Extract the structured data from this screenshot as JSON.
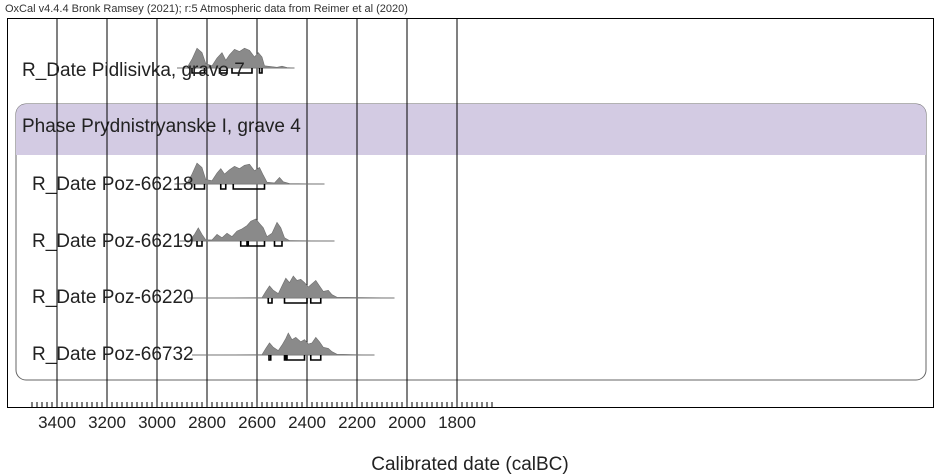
{
  "header": "OxCal v4.4.4 Bronk Ramsey (2021); r:5 Atmospheric data from Reimer et al (2020)",
  "colors": {
    "phase_band": "#d3cbe3",
    "distribution": "#8a8a8a",
    "grid": "#000000",
    "whisker": "#000000"
  },
  "chart_data": {
    "type": "oxcal-multiplot",
    "xlabel": "Calibrated date (calBC)",
    "xlim": [
      3500,
      1650
    ],
    "x_reversed": true,
    "ticks": [
      3400,
      3200,
      3000,
      2800,
      2600,
      2400,
      2200,
      2000,
      1800
    ],
    "tick_labels": [
      "3400",
      "3200",
      "3000",
      "2800",
      "2600",
      "2400",
      "2200",
      "2000",
      "1800"
    ],
    "minor_tick_step": 20,
    "phase": {
      "label": "Phase Prydnistryanske I, grave 4",
      "members": [
        "R_Date Poz-66218",
        "R_Date Poz-66219",
        "R_Date Poz-66220",
        "R_Date Poz-66732"
      ]
    },
    "rows": [
      {
        "label": "R_Date Pidlisivka, grave 7",
        "range": [
          2920,
          2450
        ],
        "ranges_95": [
          [
            2860,
            2810
          ],
          [
            2750,
            2720
          ],
          [
            2700,
            2620
          ],
          [
            2590,
            2580
          ]
        ],
        "density": [
          [
            2920,
            0
          ],
          [
            2880,
            0.02
          ],
          [
            2860,
            0.4
          ],
          [
            2840,
            0.9
          ],
          [
            2820,
            0.7
          ],
          [
            2805,
            0.2
          ],
          [
            2780,
            0.1
          ],
          [
            2760,
            0.45
          ],
          [
            2740,
            0.7
          ],
          [
            2725,
            0.35
          ],
          [
            2710,
            0.6
          ],
          [
            2690,
            0.85
          ],
          [
            2670,
            0.75
          ],
          [
            2650,
            0.9
          ],
          [
            2630,
            0.8
          ],
          [
            2610,
            0.5
          ],
          [
            2595,
            0.7
          ],
          [
            2580,
            0.5
          ],
          [
            2570,
            0.1
          ],
          [
            2520,
            0.03
          ],
          [
            2500,
            0.08
          ],
          [
            2480,
            0.02
          ],
          [
            2450,
            0
          ]
        ]
      },
      {
        "label": "R_Date Poz-66218",
        "range": [
          2930,
          2330
        ],
        "ranges_95": [
          [
            2850,
            2810
          ],
          [
            2745,
            2725
          ],
          [
            2695,
            2570
          ]
        ],
        "density": [
          [
            2930,
            0
          ],
          [
            2880,
            0.03
          ],
          [
            2860,
            0.45
          ],
          [
            2840,
            0.95
          ],
          [
            2820,
            0.75
          ],
          [
            2805,
            0.2
          ],
          [
            2780,
            0.15
          ],
          [
            2760,
            0.5
          ],
          [
            2745,
            0.7
          ],
          [
            2730,
            0.45
          ],
          [
            2710,
            0.65
          ],
          [
            2690,
            0.8
          ],
          [
            2670,
            0.7
          ],
          [
            2650,
            0.85
          ],
          [
            2630,
            0.9
          ],
          [
            2610,
            0.6
          ],
          [
            2590,
            0.75
          ],
          [
            2575,
            0.4
          ],
          [
            2560,
            0.08
          ],
          [
            2530,
            0.05
          ],
          [
            2510,
            0.3
          ],
          [
            2495,
            0.1
          ],
          [
            2470,
            0.02
          ],
          [
            2330,
            0
          ]
        ]
      },
      {
        "label": "R_Date Poz-66219",
        "range": [
          2910,
          2290
        ],
        "ranges_95": [
          [
            2840,
            2820
          ],
          [
            2665,
            2640
          ],
          [
            2635,
            2570
          ],
          [
            2530,
            2500
          ]
        ],
        "density": [
          [
            2910,
            0
          ],
          [
            2870,
            0.02
          ],
          [
            2850,
            0.3
          ],
          [
            2835,
            0.6
          ],
          [
            2820,
            0.3
          ],
          [
            2805,
            0.05
          ],
          [
            2780,
            0.05
          ],
          [
            2760,
            0.3
          ],
          [
            2740,
            0.15
          ],
          [
            2720,
            0.35
          ],
          [
            2700,
            0.2
          ],
          [
            2680,
            0.45
          ],
          [
            2660,
            0.55
          ],
          [
            2640,
            0.7
          ],
          [
            2625,
            0.9
          ],
          [
            2605,
            1.0
          ],
          [
            2590,
            0.8
          ],
          [
            2575,
            0.6
          ],
          [
            2560,
            0.2
          ],
          [
            2540,
            0.35
          ],
          [
            2520,
            0.85
          ],
          [
            2505,
            0.6
          ],
          [
            2490,
            0.15
          ],
          [
            2470,
            0.02
          ],
          [
            2290,
            0
          ]
        ]
      },
      {
        "label": "R_Date Poz-66220",
        "range": [
          2880,
          2050
        ],
        "ranges_95": [
          [
            2555,
            2540
          ],
          [
            2490,
            2400
          ],
          [
            2385,
            2345
          ]
        ],
        "density": [
          [
            2880,
            0
          ],
          [
            2580,
            0.02
          ],
          [
            2565,
            0.3
          ],
          [
            2550,
            0.55
          ],
          [
            2535,
            0.35
          ],
          [
            2515,
            0.2
          ],
          [
            2500,
            0.55
          ],
          [
            2485,
            0.9
          ],
          [
            2470,
            0.7
          ],
          [
            2455,
            1.0
          ],
          [
            2440,
            0.8
          ],
          [
            2425,
            0.85
          ],
          [
            2410,
            0.7
          ],
          [
            2395,
            0.5
          ],
          [
            2380,
            0.65
          ],
          [
            2365,
            0.8
          ],
          [
            2350,
            0.55
          ],
          [
            2335,
            0.3
          ],
          [
            2315,
            0.35
          ],
          [
            2300,
            0.15
          ],
          [
            2280,
            0.03
          ],
          [
            2050,
            0
          ]
        ]
      },
      {
        "label": "R_Date Poz-66732",
        "range": [
          2860,
          2130
        ],
        "ranges_95": [
          [
            2552,
            2545
          ],
          [
            2490,
            2485
          ],
          [
            2480,
            2410
          ],
          [
            2385,
            2345
          ]
        ],
        "density": [
          [
            2860,
            0
          ],
          [
            2580,
            0.02
          ],
          [
            2565,
            0.3
          ],
          [
            2550,
            0.55
          ],
          [
            2535,
            0.35
          ],
          [
            2515,
            0.2
          ],
          [
            2500,
            0.45
          ],
          [
            2485,
            0.75
          ],
          [
            2475,
            1.0
          ],
          [
            2460,
            0.7
          ],
          [
            2445,
            0.8
          ],
          [
            2425,
            0.6
          ],
          [
            2410,
            0.7
          ],
          [
            2395,
            0.5
          ],
          [
            2380,
            0.55
          ],
          [
            2365,
            0.8
          ],
          [
            2350,
            0.6
          ],
          [
            2335,
            0.35
          ],
          [
            2315,
            0.3
          ],
          [
            2300,
            0.15
          ],
          [
            2280,
            0.03
          ],
          [
            2130,
            0
          ]
        ]
      }
    ]
  }
}
